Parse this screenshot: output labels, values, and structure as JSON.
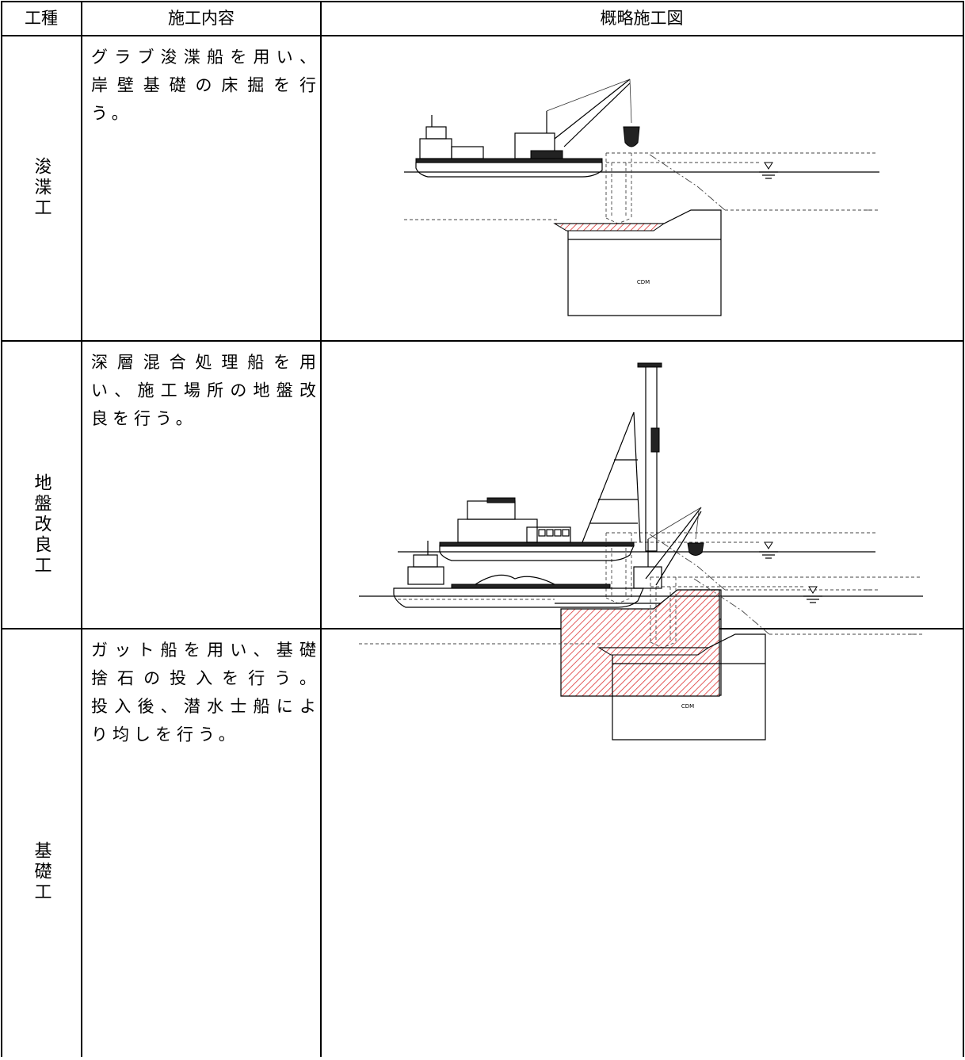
{
  "table": {
    "headers": [
      "工種",
      "施工内容",
      "概略施工図"
    ],
    "rows": [
      {
        "type": "浚渫工",
        "description": [
          "グラブ浚渫船を用い、",
          "岸壁基礎の床掘を行",
          "う。"
        ],
        "diagram_label": "CDM"
      },
      {
        "type": "地盤改良工",
        "description": [
          "深層混合処理船を用",
          "い、施工場所の地盤改",
          "良を行う。"
        ]
      },
      {
        "type": "基礎工",
        "description": [
          "ガット船を用い、基礎",
          "捨石の投入を行う。",
          "投入後、潜水士船によ",
          "り均しを行う。"
        ],
        "diagram_label": "CDM"
      }
    ]
  }
}
